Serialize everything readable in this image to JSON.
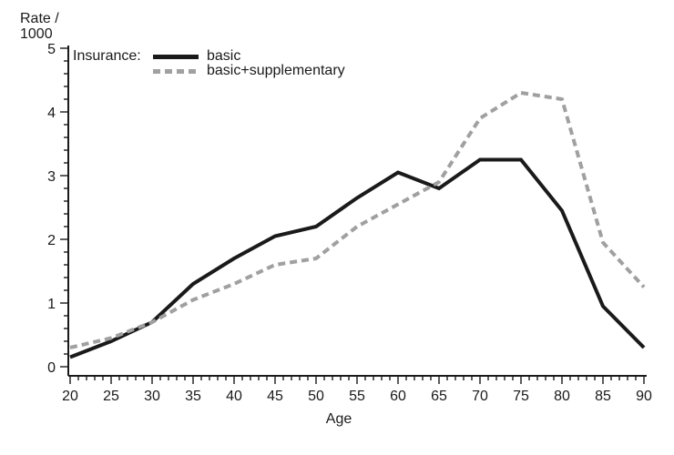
{
  "chart_data": {
    "type": "line",
    "title": "",
    "ylabel_lines": [
      "Rate /",
      "1000"
    ],
    "xlabel": "Age",
    "legend_title": "Insurance:",
    "legend_position": "top-left-inside",
    "grid": false,
    "x": [
      20,
      25,
      30,
      35,
      40,
      45,
      50,
      55,
      60,
      65,
      70,
      75,
      80,
      85,
      90
    ],
    "xlim": [
      20,
      90
    ],
    "ylim": [
      0,
      5
    ],
    "x_tick_step": 5,
    "x_minor_tick_step": 1,
    "y_tick_step": 1,
    "y_minor_tick_step": 0.2,
    "series": [
      {
        "name": "basic",
        "line_style": "solid",
        "color": "#1a1a1a",
        "values": [
          0.15,
          0.4,
          0.7,
          1.3,
          1.7,
          2.05,
          2.2,
          2.65,
          3.05,
          2.8,
          3.25,
          3.25,
          2.45,
          0.95,
          0.3
        ]
      },
      {
        "name": "basic+supplementary",
        "line_style": "dashed",
        "color": "#a0a0a0",
        "values": [
          0.3,
          0.45,
          0.7,
          1.05,
          1.3,
          1.6,
          1.7,
          2.2,
          2.55,
          2.9,
          3.9,
          4.3,
          4.2,
          1.95,
          1.25
        ]
      }
    ],
    "axis_color": "#1a1a1a",
    "text_color": "#1a1a1a",
    "background": "#ffffff"
  }
}
